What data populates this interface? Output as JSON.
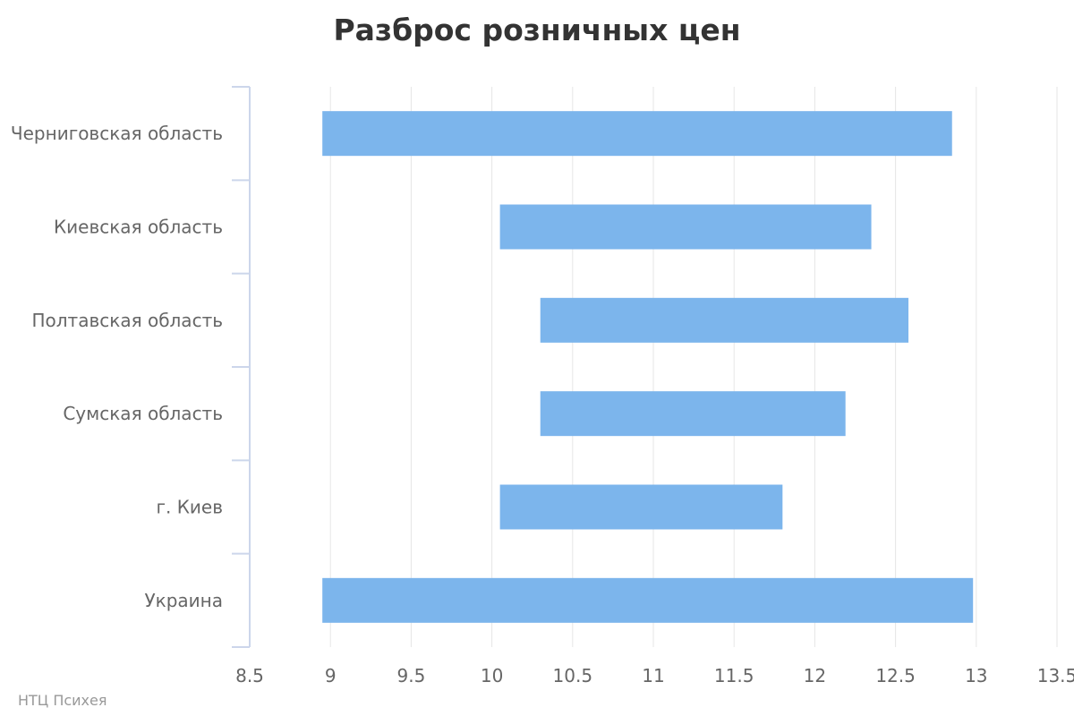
{
  "title": "Разброс розничных цен",
  "credits": "НТЦ Психея",
  "colors": {
    "bar": "#7cb5ec",
    "grid": "#e6e6e6",
    "axis_line": "#ccd6eb",
    "label": "#666666",
    "title": "#333333",
    "credits": "#999999"
  },
  "chart_data": {
    "type": "bar",
    "orientation": "horizontal",
    "subtype": "range",
    "title": "Разброс розничных цен",
    "categories": [
      "Черниговская область",
      "Киевская область",
      "Полтавская область",
      "Сумская область",
      "г. Киев",
      "Украина"
    ],
    "low": [
      8.95,
      10.05,
      10.3,
      10.3,
      10.05,
      8.95
    ],
    "high": [
      12.85,
      12.35,
      12.58,
      12.19,
      11.8,
      12.98
    ],
    "xlim": [
      8.5,
      13.5
    ],
    "xticks": [
      "8.5",
      "9",
      "9.5",
      "10",
      "10.5",
      "11",
      "11.5",
      "12",
      "12.5",
      "13",
      "13.5"
    ],
    "grid": true,
    "legend": "none"
  }
}
